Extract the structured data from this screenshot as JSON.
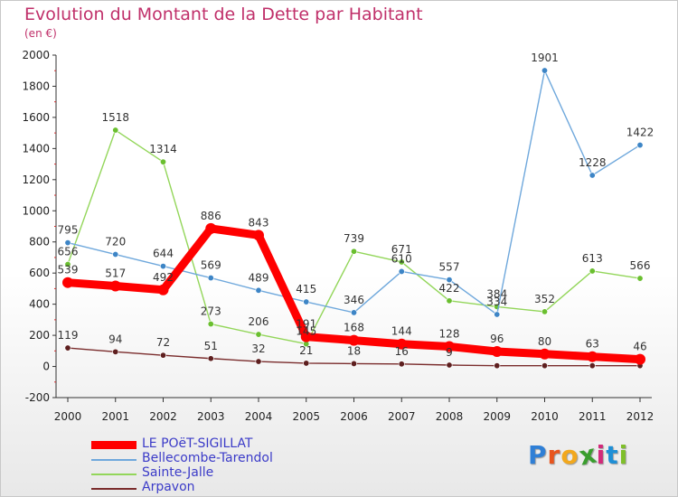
{
  "header": {
    "title": "Evolution du Montant de la Dette par Habitant",
    "subtitle": "(en €)"
  },
  "logo": {
    "letters": [
      "P",
      "r",
      "o",
      "x",
      "i",
      "t",
      "i"
    ],
    "colors": [
      "#2f7fd6",
      "#e8551e",
      "#f2a81d",
      "#3a9e2e",
      "#d22a7a",
      "#1f8fd6",
      "#7fbf2a"
    ]
  },
  "chart_data": {
    "type": "line",
    "title": "Evolution du Montant de la Dette par Habitant",
    "subtitle": "(en €)",
    "xlabel": "",
    "ylabel": "",
    "x": [
      "2000",
      "2001",
      "2002",
      "2003",
      "2004",
      "2005",
      "2006",
      "2007",
      "2008",
      "2009",
      "2010",
      "2011",
      "2012"
    ],
    "ylim": [
      -200,
      2000
    ],
    "yticks": [
      "-200",
      "0",
      "200",
      "400",
      "600",
      "800",
      "1000",
      "1200",
      "1400",
      "1600",
      "1800",
      "2000"
    ],
    "grid": false,
    "legend_position": "bottom-left",
    "series": [
      {
        "name": "LE POëT-SIGILLAT",
        "color": "#ff0000",
        "emphasis": "thick",
        "values": [
          539,
          517,
          492,
          886,
          843,
          191,
          168,
          144,
          128,
          96,
          80,
          63,
          46
        ],
        "labels": [
          "539",
          "517",
          "492",
          "886",
          "843",
          "191",
          "168",
          "144",
          "128",
          "96",
          "80",
          "63",
          "46"
        ]
      },
      {
        "name": "Bellecombe-Tarendol",
        "color": "#6fa8dc",
        "marker_color": "#3d85c6",
        "values": [
          795,
          720,
          644,
          569,
          489,
          415,
          346,
          610,
          557,
          334,
          1901,
          1228,
          1422
        ],
        "labels": [
          "795",
          "720",
          "644",
          "569",
          "489",
          "415",
          "346",
          "610",
          "557",
          "334",
          "1901",
          "1228",
          "1422"
        ]
      },
      {
        "name": "Sainte-Jalle",
        "color": "#93d65a",
        "marker_color": "#6abf2f",
        "values": [
          656,
          1518,
          1314,
          273,
          206,
          145,
          739,
          671,
          422,
          384,
          352,
          613,
          566
        ],
        "labels": [
          "656",
          "1518",
          "1314",
          "273",
          "206",
          "145",
          "739",
          "671",
          "422",
          "384",
          "352",
          "613",
          "566"
        ]
      },
      {
        "name": "Arpavon",
        "color": "#7a2c2c",
        "marker_color": "#5e1f1f",
        "values": [
          119,
          94,
          72,
          51,
          32,
          21,
          18,
          16,
          9,
          5,
          5,
          5,
          5
        ],
        "labels": [
          "119",
          "94",
          "72",
          "51",
          "32",
          "21",
          "18",
          "16",
          "9",
          "",
          "",
          "",
          ""
        ]
      }
    ]
  }
}
